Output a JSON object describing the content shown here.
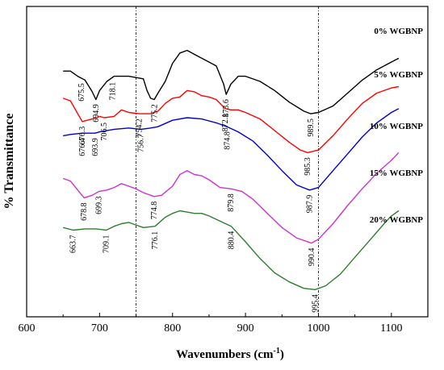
{
  "chart_data": {
    "type": "line",
    "title": "",
    "xlabel": "Wavenumbers (cm",
    "xlabel_sup": "-1",
    "xlabel_close": ")",
    "ylabel": "% Transmittance",
    "xlim": [
      600,
      1150
    ],
    "xticks": [
      "600",
      "700",
      "800",
      "900",
      "1000",
      "1100"
    ],
    "ref_lines": [
      750,
      1000
    ],
    "legend_placement": "top-right, label at the end of each curve",
    "series": [
      {
        "name": "0% WGBNP",
        "color": "#000000",
        "x": [
          650,
          660,
          670,
          680,
          690,
          695,
          700,
          710,
          720,
          730,
          740,
          750,
          760,
          765,
          770,
          775,
          780,
          790,
          800,
          810,
          820,
          830,
          840,
          850,
          860,
          870,
          873.6,
          880,
          890,
          900,
          920,
          940,
          960,
          980,
          989.5,
          1000,
          1020,
          1040,
          1060,
          1080,
          1100,
          1110
        ],
        "y": [
          8.0,
          8.0,
          7.6,
          7.3,
          6.4,
          5.8,
          6.5,
          7.2,
          7.6,
          7.6,
          7.6,
          7.5,
          7.4,
          6.5,
          5.9,
          5.8,
          6.3,
          7.2,
          8.6,
          9.4,
          9.6,
          9.3,
          9.0,
          8.7,
          8.4,
          7.0,
          6.2,
          7.0,
          7.6,
          7.6,
          7.2,
          6.5,
          5.6,
          4.9,
          4.7,
          4.8,
          5.3,
          6.3,
          7.3,
          8.1,
          8.7,
          9.0
        ]
      },
      {
        "name": "5% WGBNP",
        "color": "#ff0000",
        "x": [
          650,
          660,
          676.3,
          690,
          700,
          706.5,
          720,
          730,
          740,
          754.2,
          770,
          780,
          790,
          800,
          810,
          820,
          830,
          840,
          850,
          860,
          872.1,
          880,
          890,
          900,
          920,
          940,
          960,
          975,
          985.3,
          1000,
          1020,
          1040,
          1060,
          1080,
          1100,
          1110
        ],
        "y": [
          5.9,
          5.7,
          4.1,
          4.3,
          4.5,
          4.4,
          4.5,
          5.0,
          4.8,
          4.7,
          4.7,
          4.9,
          5.5,
          5.9,
          6.0,
          6.5,
          6.4,
          6.1,
          6.0,
          5.8,
          5.1,
          5.0,
          5.0,
          4.8,
          4.3,
          3.4,
          2.5,
          1.9,
          1.7,
          1.9,
          3.0,
          4.3,
          5.5,
          6.3,
          6.7,
          6.8
        ]
      },
      {
        "name": "10% WGBNP",
        "color": "#0000cc",
        "x": [
          650,
          660,
          676.4,
          685,
          693.9,
          700,
          720,
          740,
          756.7,
          770,
          780,
          800,
          820,
          840,
          860,
          874.8,
          890,
          910,
          930,
          950,
          970,
          987.9,
          1000,
          1020,
          1040,
          1060,
          1080,
          1100,
          1110
        ],
        "y": [
          3.0,
          3.1,
          3.2,
          3.2,
          3.2,
          3.3,
          3.5,
          3.6,
          3.5,
          3.6,
          3.7,
          4.2,
          4.4,
          4.3,
          4.0,
          3.7,
          3.3,
          2.6,
          1.5,
          0.3,
          -0.8,
          -1.2,
          -1.0,
          0.3,
          1.6,
          2.9,
          4.0,
          4.8,
          5.1
        ]
      },
      {
        "name": "15% WGBNP",
        "color": "#cc33cc",
        "x": [
          650,
          660,
          670,
          678.8,
          690,
          699.3,
          710,
          720,
          730,
          740,
          750,
          760,
          774.8,
          785,
          800,
          810,
          820,
          830,
          840,
          850,
          865,
          879.8,
          895,
          910,
          930,
          950,
          970,
          990.4,
          1000,
          1020,
          1040,
          1060,
          1080,
          1100,
          1110
        ],
        "y": [
          -0.3,
          -0.5,
          -1.2,
          -1.8,
          -1.6,
          -1.3,
          -1.2,
          -1.0,
          -0.7,
          -0.9,
          -1.1,
          -1.4,
          -1.7,
          -1.6,
          -0.9,
          0.0,
          0.3,
          0.0,
          -0.1,
          -0.4,
          -1.0,
          -1.1,
          -1.3,
          -1.9,
          -3.0,
          -4.1,
          -4.9,
          -5.3,
          -5.0,
          -3.8,
          -2.4,
          -1.1,
          0.1,
          1.1,
          1.7
        ]
      },
      {
        "name": "20% WGBNP",
        "color": "#2e7d2e",
        "x": [
          650,
          663.7,
          680,
          695,
          709.1,
          720,
          730,
          740,
          750,
          760,
          776.1,
          790,
          800,
          810,
          820,
          830,
          840,
          850,
          865,
          880.4,
          900,
          920,
          940,
          960,
          980,
          995.4,
          1010,
          1030,
          1050,
          1070,
          1090,
          1100,
          1110
        ],
        "y": [
          -4.1,
          -4.3,
          -4.2,
          -4.2,
          -4.3,
          -4.0,
          -3.8,
          -3.7,
          -3.9,
          -4.1,
          -4.0,
          -3.3,
          -3.0,
          -2.8,
          -2.9,
          -3.0,
          -3.0,
          -3.2,
          -3.6,
          -4.0,
          -5.2,
          -6.5,
          -7.6,
          -8.3,
          -8.8,
          -8.9,
          -8.6,
          -7.7,
          -6.4,
          -5.1,
          -3.8,
          -3.2,
          -2.8
        ]
      }
    ],
    "annotations": [
      {
        "series": 0,
        "x": 675.5,
        "label": "675.5"
      },
      {
        "series": 0,
        "x": 694.9,
        "label": "694.9"
      },
      {
        "series": 0,
        "x": 718.1,
        "label": "718.1"
      },
      {
        "series": 0,
        "x": 775.2,
        "label": "775.2"
      },
      {
        "series": 0,
        "x": 873.6,
        "label": "873.6"
      },
      {
        "series": 0,
        "x": 989.5,
        "label": "989.5"
      },
      {
        "series": 1,
        "x": 676.3,
        "label": "676.3"
      },
      {
        "series": 1,
        "x": 706.5,
        "label": "706.5"
      },
      {
        "series": 1,
        "x": 754.2,
        "label": "754.2"
      },
      {
        "series": 1,
        "x": 872.1,
        "label": "872.1"
      },
      {
        "series": 1,
        "x": 985.3,
        "label": "985.3"
      },
      {
        "series": 2,
        "x": 676.4,
        "label": "676.4"
      },
      {
        "series": 2,
        "x": 693.9,
        "label": "693.9"
      },
      {
        "series": 2,
        "x": 756.7,
        "label": "756.7"
      },
      {
        "series": 2,
        "x": 874.8,
        "label": "874.8"
      },
      {
        "series": 2,
        "x": 987.9,
        "label": "987.9"
      },
      {
        "series": 3,
        "x": 678.8,
        "label": "678.8"
      },
      {
        "series": 3,
        "x": 699.3,
        "label": "699.3"
      },
      {
        "series": 3,
        "x": 774.8,
        "label": "774.8"
      },
      {
        "series": 3,
        "x": 879.8,
        "label": "879.8"
      },
      {
        "series": 3,
        "x": 990.4,
        "label": "990.4"
      },
      {
        "series": 4,
        "x": 663.7,
        "label": "663.7"
      },
      {
        "series": 4,
        "x": 709.1,
        "label": "709.1"
      },
      {
        "series": 4,
        "x": 776.1,
        "label": "776.1"
      },
      {
        "series": 4,
        "x": 880.4,
        "label": "880.4"
      },
      {
        "series": 4,
        "x": 995.4,
        "label": "995.4"
      }
    ],
    "grid": false
  }
}
